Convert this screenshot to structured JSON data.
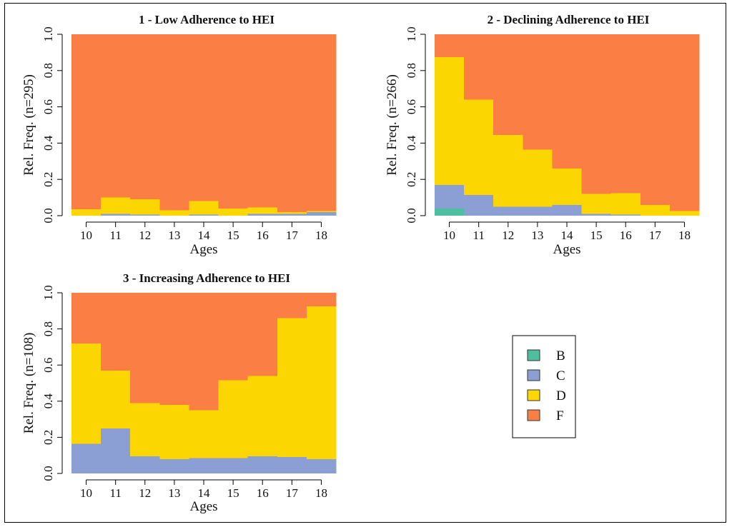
{
  "chart_data": [
    {
      "type": "bar",
      "stacked": "relative-frequency",
      "title": "1 - Low Adherence to HEI",
      "xlabel": "Ages",
      "ylabel": "Rel. Freq. (n=295)",
      "ylim": [
        0,
        1
      ],
      "yticks": [
        "0.0",
        "0.2",
        "0.4",
        "0.6",
        "0.8",
        "1.0"
      ],
      "categories": [
        "10",
        "11",
        "12",
        "13",
        "14",
        "15",
        "16",
        "17",
        "18"
      ],
      "series": [
        {
          "name": "B",
          "values": [
            0,
            0,
            0,
            0,
            0,
            0,
            0,
            0,
            0
          ]
        },
        {
          "name": "C",
          "values": [
            0.0,
            0.01,
            0.005,
            0.0,
            0.005,
            0.0,
            0.01,
            0.01,
            0.02
          ]
        },
        {
          "name": "D",
          "values": [
            0.035,
            0.09,
            0.085,
            0.03,
            0.075,
            0.04,
            0.035,
            0.01,
            0.005
          ]
        },
        {
          "name": "F",
          "values": [
            0.965,
            0.9,
            0.91,
            0.97,
            0.92,
            0.96,
            0.955,
            0.98,
            0.975
          ]
        }
      ]
    },
    {
      "type": "bar",
      "stacked": "relative-frequency",
      "title": "2 - Declining Adherence to HEI",
      "xlabel": "Ages",
      "ylabel": "Rel. Freq. (n=266)",
      "ylim": [
        0,
        1
      ],
      "yticks": [
        "0.0",
        "0.2",
        "0.4",
        "0.6",
        "0.8",
        "1.0"
      ],
      "categories": [
        "10",
        "11",
        "12",
        "13",
        "14",
        "15",
        "16",
        "17",
        "18"
      ],
      "series": [
        {
          "name": "B",
          "values": [
            0.04,
            0,
            0,
            0,
            0,
            0,
            0,
            0,
            0
          ]
        },
        {
          "name": "C",
          "values": [
            0.13,
            0.115,
            0.05,
            0.05,
            0.06,
            0.01,
            0.005,
            0.0,
            0.0
          ]
        },
        {
          "name": "D",
          "values": [
            0.705,
            0.525,
            0.395,
            0.315,
            0.2,
            0.11,
            0.12,
            0.06,
            0.025
          ]
        },
        {
          "name": "F",
          "values": [
            0.125,
            0.36,
            0.555,
            0.635,
            0.74,
            0.88,
            0.875,
            0.94,
            0.975
          ]
        }
      ]
    },
    {
      "type": "bar",
      "stacked": "relative-frequency",
      "title": "3 - Increasing Adherence to HEI",
      "xlabel": "Ages",
      "ylabel": "Rel. Freq. (n=108)",
      "ylim": [
        0,
        1
      ],
      "yticks": [
        "0.0",
        "0.2",
        "0.4",
        "0.6",
        "0.8",
        "1.0"
      ],
      "categories": [
        "10",
        "11",
        "12",
        "13",
        "14",
        "15",
        "16",
        "17",
        "18"
      ],
      "series": [
        {
          "name": "B",
          "values": [
            0,
            0,
            0,
            0,
            0,
            0,
            0,
            0,
            0
          ]
        },
        {
          "name": "C",
          "values": [
            0.165,
            0.25,
            0.095,
            0.08,
            0.085,
            0.085,
            0.095,
            0.09,
            0.08
          ]
        },
        {
          "name": "D",
          "values": [
            0.555,
            0.32,
            0.295,
            0.3,
            0.265,
            0.43,
            0.445,
            0.77,
            0.845
          ]
        },
        {
          "name": "F",
          "values": [
            0.28,
            0.43,
            0.61,
            0.62,
            0.65,
            0.485,
            0.46,
            0.14,
            0.075
          ]
        }
      ]
    }
  ],
  "legend": {
    "placement": "bottom-right",
    "items": [
      {
        "label": "B",
        "color": "#4dbf9f"
      },
      {
        "label": "C",
        "color": "#8c9fd4"
      },
      {
        "label": "D",
        "color": "#fbd600"
      },
      {
        "label": "F",
        "color": "#fb7f44"
      }
    ]
  },
  "colors": {
    "B": "#4dbf9f",
    "C": "#8c9fd4",
    "D": "#fbd600",
    "F": "#fb7f44"
  }
}
